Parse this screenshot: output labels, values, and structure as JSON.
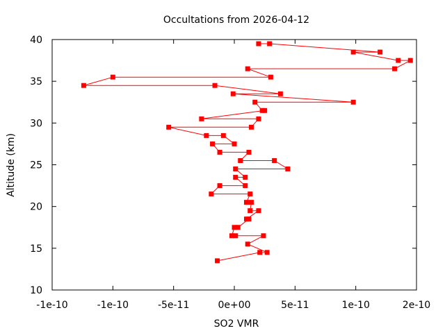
{
  "chart_data": {
    "type": "line",
    "title": "Occultations from 2026-04-12",
    "xlabel": "SO2 VMR",
    "ylabel": "Altitude (km)",
    "xlim": [
      -1.5e-10,
      1.5e-10
    ],
    "ylim": [
      10,
      40
    ],
    "xticks": [
      -1.5e-10,
      -1e-10,
      -5e-11,
      0,
      5e-11,
      1e-10,
      1.5e-10
    ],
    "xtick_labels": [
      "-1e-10",
      "-1e-10",
      "-5e-11",
      "0e+00",
      "5e-11",
      "1e-10",
      "2e-10"
    ],
    "yticks": [
      10,
      15,
      20,
      25,
      30,
      35,
      40
    ],
    "ytick_labels": [
      "10",
      "15",
      "20",
      "25",
      "30",
      "35",
      "40"
    ],
    "grid": false,
    "legend": "none",
    "colors": {
      "series": "#ff0000",
      "axis": "#000000"
    },
    "series": [
      {
        "marker": "square",
        "points": [
          {
            "x": -1.4e-11,
            "y": 13.5
          },
          {
            "x": 2.1e-11,
            "y": 14.5
          },
          {
            "x": 2.7e-11,
            "y": 14.5
          },
          {
            "x": 1.1e-11,
            "y": 15.5
          },
          {
            "x": 2.4e-11,
            "y": 16.5
          },
          {
            "x": 1e-12,
            "y": 16.5
          },
          {
            "x": -2e-12,
            "y": 16.5
          },
          {
            "x": 0,
            "y": 17.5
          },
          {
            "x": 3e-12,
            "y": 17.5
          },
          {
            "x": 1.2e-11,
            "y": 18.5
          },
          {
            "x": 1e-11,
            "y": 18.5
          },
          {
            "x": 2e-11,
            "y": 19.5
          },
          {
            "x": 1.3e-11,
            "y": 19.5
          },
          {
            "x": 1.4e-11,
            "y": 20.5
          },
          {
            "x": 1e-11,
            "y": 20.5
          },
          {
            "x": 1.3e-11,
            "y": 21.5
          },
          {
            "x": -1.9e-11,
            "y": 21.5
          },
          {
            "x": -1.2e-11,
            "y": 22.5
          },
          {
            "x": 9e-12,
            "y": 22.5
          },
          {
            "x": 1e-12,
            "y": 23.5
          },
          {
            "x": 9e-12,
            "y": 23.5
          },
          {
            "x": 1e-12,
            "y": 24.5
          },
          {
            "x": 4.4e-11,
            "y": 24.5
          },
          {
            "x": 3.3e-11,
            "y": 25.5
          },
          {
            "x": 5e-12,
            "y": 25.5
          },
          {
            "x": 1.2e-11,
            "y": 26.5
          },
          {
            "x": -1.2e-11,
            "y": 26.5
          },
          {
            "x": -1.8e-11,
            "y": 27.5
          },
          {
            "x": 0,
            "y": 27.5
          },
          {
            "x": -9e-12,
            "y": 28.5
          },
          {
            "x": -2.3e-11,
            "y": 28.5
          },
          {
            "x": -5.4e-11,
            "y": 29.5
          },
          {
            "x": 1.4e-11,
            "y": 29.5
          },
          {
            "x": 2e-11,
            "y": 30.5
          },
          {
            "x": -2.7e-11,
            "y": 30.5
          },
          {
            "x": 2.5e-11,
            "y": 31.5
          },
          {
            "x": 2.3e-11,
            "y": 31.5
          },
          {
            "x": 1.7e-11,
            "y": 32.5
          },
          {
            "x": 9.8e-11,
            "y": 32.5
          },
          {
            "x": -1e-12,
            "y": 33.5
          },
          {
            "x": 3.8e-11,
            "y": 33.5
          },
          {
            "x": -1.6e-11,
            "y": 34.5
          },
          {
            "x": -1.24e-10,
            "y": 34.5
          },
          {
            "x": -1e-10,
            "y": 35.5
          },
          {
            "x": 3e-11,
            "y": 35.5
          },
          {
            "x": 1.1e-11,
            "y": 36.5
          },
          {
            "x": 1.32e-10,
            "y": 36.5
          },
          {
            "x": 1.45e-10,
            "y": 37.5
          },
          {
            "x": 1.35e-10,
            "y": 37.5
          },
          {
            "x": 9.8e-11,
            "y": 38.5
          },
          {
            "x": 1.2e-10,
            "y": 38.5
          },
          {
            "x": 2.9e-11,
            "y": 39.5
          },
          {
            "x": 2e-11,
            "y": 39.5
          }
        ]
      }
    ]
  }
}
